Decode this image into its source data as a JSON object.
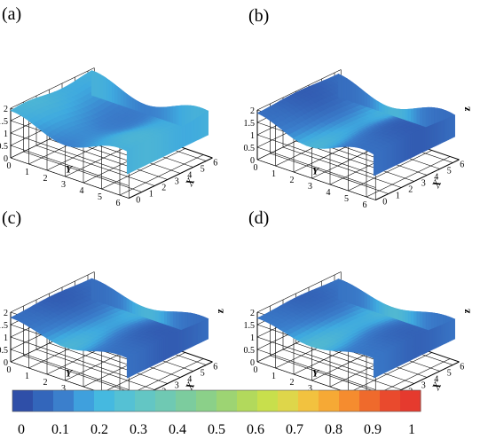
{
  "panels": [
    {
      "label": "(a)",
      "show_z_label": false,
      "shape": "a"
    },
    {
      "label": "(b)",
      "show_z_label": true,
      "shape": "b"
    },
    {
      "label": "(c)",
      "show_z_label": true,
      "shape": "c"
    },
    {
      "label": "(d)",
      "show_z_label": true,
      "shape": "d"
    }
  ],
  "axes": {
    "x_label": "X",
    "y_label": "Y",
    "z_label": "z",
    "x_ticks": [
      "0",
      "1",
      "2",
      "3",
      "4",
      "5",
      "6"
    ],
    "y_ticks": [
      "0",
      "1",
      "2",
      "3",
      "4",
      "5",
      "6"
    ],
    "z_ticks": [
      "0",
      "0.5",
      "1",
      "1.5",
      "2"
    ]
  },
  "colorbar": {
    "tick_labels": [
      "0",
      "0.1",
      "0.2",
      "0.3",
      "0.4",
      "0.5",
      "0.6",
      "0.7",
      "0.8",
      "0.9",
      "1"
    ],
    "colors": [
      "#2f4fa8",
      "#3366bb",
      "#3b7fcc",
      "#3fa0dd",
      "#45b9e0",
      "#55c1d4",
      "#63c6c4",
      "#6fc9b3",
      "#7ccc9e",
      "#8bd089",
      "#9dd473",
      "#b2d95c",
      "#c8df4c",
      "#ded64a",
      "#f2c23f",
      "#f6a935",
      "#f58c2f",
      "#ef6a2c",
      "#e94a2d",
      "#e53a2e"
    ]
  },
  "chart_data": [
    {
      "type": "surface",
      "title": "(a)",
      "xlabel": "X",
      "ylabel": "Y",
      "zlabel": "",
      "xlim": [
        0,
        6
      ],
      "ylim": [
        0,
        6
      ],
      "zlim": [
        0,
        2
      ],
      "colormap_range": [
        0,
        1
      ]
    },
    {
      "type": "surface",
      "title": "(b)",
      "xlabel": "X",
      "ylabel": "Y",
      "zlabel": "z",
      "xlim": [
        0,
        6
      ],
      "ylim": [
        0,
        6
      ],
      "zlim": [
        0,
        2
      ],
      "colormap_range": [
        0,
        1
      ]
    },
    {
      "type": "surface",
      "title": "(c)",
      "xlabel": "X",
      "ylabel": "Y",
      "zlabel": "z",
      "xlim": [
        0,
        6
      ],
      "ylim": [
        0,
        6
      ],
      "zlim": [
        0,
        2
      ],
      "colormap_range": [
        0,
        1
      ]
    },
    {
      "type": "surface",
      "title": "(d)",
      "xlabel": "X",
      "ylabel": "Y",
      "zlabel": "z",
      "xlim": [
        0,
        6
      ],
      "ylim": [
        0,
        6
      ],
      "zlim": [
        0,
        2
      ],
      "colormap_range": [
        0,
        1
      ]
    }
  ]
}
